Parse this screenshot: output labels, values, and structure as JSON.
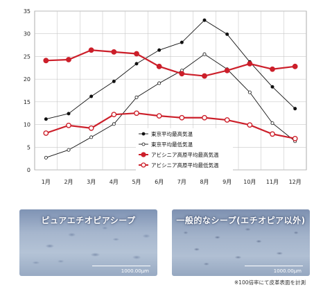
{
  "chart_data": {
    "type": "line",
    "categories": [
      "1月",
      "2月",
      "3月",
      "4月",
      "5月",
      "6月",
      "7月",
      "8月",
      "9月",
      "10月",
      "11月",
      "12月"
    ],
    "ylim": [
      0,
      35
    ],
    "yticks": [
      0,
      5,
      10,
      15,
      20,
      25,
      30,
      35
    ],
    "grid": true,
    "legend_position": "bottom-center",
    "series": [
      {
        "name": "東京平均最高気温",
        "color": "#111111",
        "marker": "filled-circle",
        "values": [
          11.2,
          12.4,
          16.2,
          19.5,
          23.4,
          26.4,
          28.1,
          33.0,
          29.9,
          23.8,
          18.3,
          13.5
        ]
      },
      {
        "name": "東京平均最低気温",
        "color": "#111111",
        "marker": "open-circle",
        "values": [
          2.7,
          4.4,
          7.2,
          10.1,
          16.0,
          19.1,
          21.9,
          25.5,
          22.2,
          17.1,
          10.3,
          6.3
        ]
      },
      {
        "name": "アビシニア高原平均最高気温",
        "color": "#cc1f2a",
        "marker": "filled-circle",
        "values": [
          24.1,
          24.3,
          26.4,
          26.0,
          25.6,
          22.8,
          21.2,
          20.7,
          21.9,
          23.4,
          22.2,
          22.8
        ]
      },
      {
        "name": "アビシニア高原平均最低気温",
        "color": "#cc1f2a",
        "marker": "open-circle",
        "values": [
          8.1,
          9.8,
          9.2,
          12.2,
          12.5,
          11.9,
          11.5,
          11.5,
          11.0,
          9.9,
          7.9,
          6.9
        ]
      }
    ]
  },
  "photos": {
    "left": {
      "title": "ピュアエチオピアシープ",
      "scale": "1000.00μm"
    },
    "right": {
      "title": "一般的なシープ(エチオピア以外)",
      "scale": "1000.00μm"
    }
  },
  "footnote": "※100倍率にて皮革表面を計測"
}
